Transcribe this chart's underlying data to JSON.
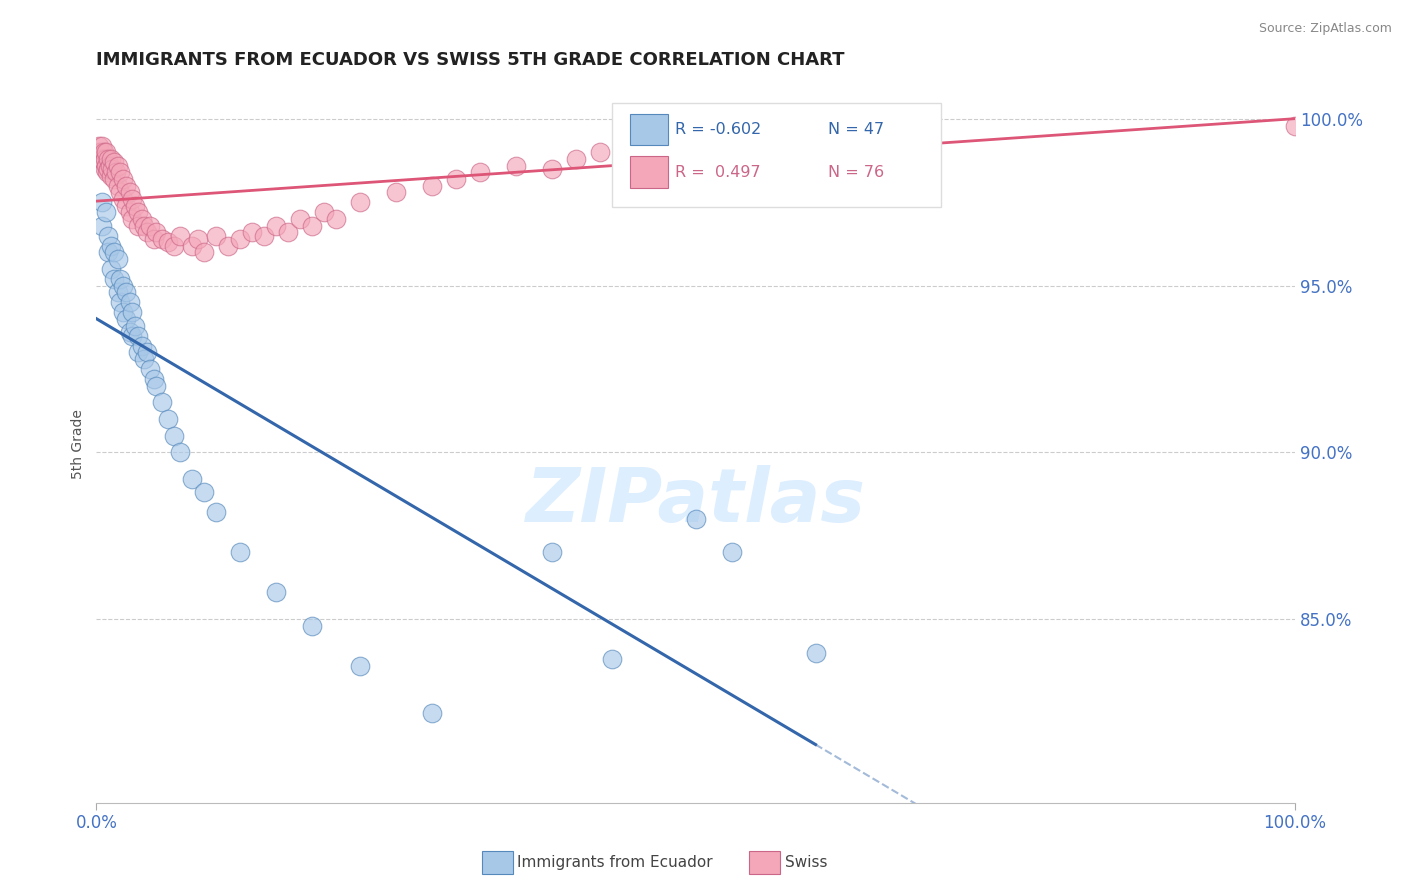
{
  "title": "IMMIGRANTS FROM ECUADOR VS SWISS 5TH GRADE CORRELATION CHART",
  "source": "Source: ZipAtlas.com",
  "ylabel": "5th Grade",
  "y_ticks": [
    0.85,
    0.9,
    0.95,
    1.0
  ],
  "y_tick_labels": [
    "85.0%",
    "90.0%",
    "95.0%",
    "100.0%"
  ],
  "x_range": [
    0.0,
    1.0
  ],
  "y_range": [
    0.795,
    1.01
  ],
  "blue_R": -0.602,
  "blue_N": 47,
  "pink_R": 0.497,
  "pink_N": 76,
  "blue_color": "#a8c8e8",
  "pink_color": "#f4a7b9",
  "blue_edge_color": "#5588bb",
  "pink_edge_color": "#cc6688",
  "blue_line_color": "#3366aa",
  "pink_line_color": "#dd5577",
  "legend_blue_label": "Immigrants from Ecuador",
  "legend_pink_label": "Swiss",
  "watermark": "ZIPatlas",
  "watermark_color": "#ddeeff",
  "background_color": "#ffffff",
  "title_color": "#222222",
  "axis_label_color": "#4472c4",
  "grid_color": "#cccccc",
  "blue_scatter_x": [
    0.005,
    0.005,
    0.008,
    0.01,
    0.01,
    0.012,
    0.012,
    0.015,
    0.015,
    0.018,
    0.018,
    0.02,
    0.02,
    0.022,
    0.022,
    0.025,
    0.025,
    0.028,
    0.028,
    0.03,
    0.03,
    0.032,
    0.035,
    0.035,
    0.038,
    0.04,
    0.042,
    0.045,
    0.048,
    0.05,
    0.055,
    0.06,
    0.065,
    0.07,
    0.08,
    0.09,
    0.1,
    0.12,
    0.15,
    0.18,
    0.22,
    0.28,
    0.38,
    0.43,
    0.5,
    0.53,
    0.6
  ],
  "blue_scatter_y": [
    0.975,
    0.968,
    0.972,
    0.965,
    0.96,
    0.962,
    0.955,
    0.96,
    0.952,
    0.958,
    0.948,
    0.952,
    0.945,
    0.95,
    0.942,
    0.948,
    0.94,
    0.945,
    0.936,
    0.942,
    0.935,
    0.938,
    0.935,
    0.93,
    0.932,
    0.928,
    0.93,
    0.925,
    0.922,
    0.92,
    0.915,
    0.91,
    0.905,
    0.9,
    0.892,
    0.888,
    0.882,
    0.87,
    0.858,
    0.848,
    0.836,
    0.822,
    0.87,
    0.838,
    0.88,
    0.87,
    0.84
  ],
  "pink_scatter_x": [
    0.002,
    0.003,
    0.004,
    0.005,
    0.005,
    0.006,
    0.007,
    0.007,
    0.008,
    0.008,
    0.009,
    0.01,
    0.01,
    0.011,
    0.012,
    0.012,
    0.013,
    0.015,
    0.015,
    0.016,
    0.018,
    0.018,
    0.02,
    0.02,
    0.022,
    0.022,
    0.025,
    0.025,
    0.028,
    0.028,
    0.03,
    0.03,
    0.032,
    0.035,
    0.035,
    0.038,
    0.04,
    0.042,
    0.045,
    0.048,
    0.05,
    0.055,
    0.06,
    0.065,
    0.07,
    0.08,
    0.085,
    0.09,
    0.1,
    0.11,
    0.12,
    0.13,
    0.14,
    0.15,
    0.16,
    0.17,
    0.18,
    0.19,
    0.2,
    0.22,
    0.25,
    0.28,
    0.3,
    0.32,
    0.35,
    0.38,
    0.4,
    0.42,
    0.45,
    0.48,
    0.5,
    0.52,
    0.55,
    0.58,
    0.6,
    1.0
  ],
  "pink_scatter_y": [
    0.992,
    0.99,
    0.988,
    0.992,
    0.988,
    0.99,
    0.988,
    0.985,
    0.99,
    0.986,
    0.984,
    0.988,
    0.985,
    0.986,
    0.988,
    0.983,
    0.985,
    0.987,
    0.982,
    0.984,
    0.986,
    0.98,
    0.984,
    0.978,
    0.982,
    0.976,
    0.98,
    0.974,
    0.978,
    0.972,
    0.976,
    0.97,
    0.974,
    0.972,
    0.968,
    0.97,
    0.968,
    0.966,
    0.968,
    0.964,
    0.966,
    0.964,
    0.963,
    0.962,
    0.965,
    0.962,
    0.964,
    0.96,
    0.965,
    0.962,
    0.964,
    0.966,
    0.965,
    0.968,
    0.966,
    0.97,
    0.968,
    0.972,
    0.97,
    0.975,
    0.978,
    0.98,
    0.982,
    0.984,
    0.986,
    0.985,
    0.988,
    0.99,
    0.992,
    0.994,
    0.996,
    0.995,
    0.998,
    0.998,
    0.999,
    0.998
  ]
}
